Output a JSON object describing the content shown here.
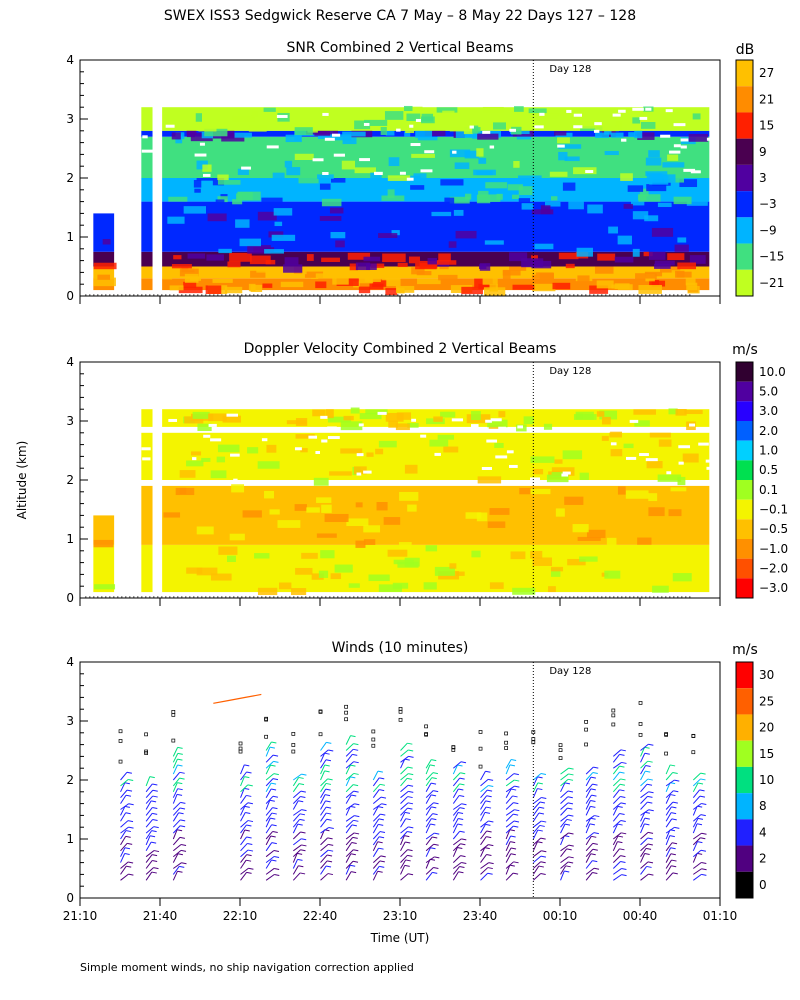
{
  "header": {
    "title": "SWEX ISS3 Sedgwick Reserve CA   7 May –  8 May 22 Days 127 – 128"
  },
  "footer": {
    "note": "Simple moment winds, no ship navigation correction applied"
  },
  "common": {
    "ylabel": "Altitude (km)",
    "xlabel": "Time (UT)",
    "y_ticks": [
      "0",
      "1",
      "2",
      "3",
      "4"
    ],
    "x_ticks": [
      "21:10",
      "21:40",
      "22:10",
      "22:40",
      "23:10",
      "23:40",
      "00:10",
      "00:40",
      "01:10"
    ],
    "day_marker": "Day 128"
  },
  "chart_data": [
    {
      "type": "heatmap",
      "title": "SNR Combined 2 Vertical Beams",
      "units": "dB",
      "xlabel": "Time (UT)",
      "ylabel": "Altitude (km)",
      "xlim_hours": [
        21.1667,
        25.1667
      ],
      "ylim": [
        0,
        4
      ],
      "day_marker_hour": 24.0,
      "data_gaps_hours": [
        [
          21.42,
          21.53
        ],
        [
          21.59,
          21.65
        ],
        [
          21.72,
          21.78
        ]
      ],
      "colorbar": {
        "labels": [
          "27",
          "21",
          "15",
          "9",
          "3",
          "−3",
          "−9",
          "−15",
          "−21"
        ],
        "colors": [
          "#ffc000",
          "#ff8c00",
          "#ff2000",
          "#4a0050",
          "#5000a0",
          "#0028ff",
          "#00b4ff",
          "#40e080",
          "#c0ff20"
        ]
      },
      "layers": [
        {
          "alt_km": [
            0.1,
            0.3
          ],
          "band": 1
        },
        {
          "alt_km": [
            0.3,
            0.5
          ],
          "band": 0
        },
        {
          "alt_km": [
            0.5,
            0.75
          ],
          "band": 3
        },
        {
          "alt_km": [
            0.75,
            1.6
          ],
          "band": 5
        },
        {
          "alt_km": [
            1.6,
            2.0
          ],
          "band": 6
        },
        {
          "alt_km": [
            2.0,
            2.7
          ],
          "band": 7
        },
        {
          "alt_km": [
            2.7,
            2.8
          ],
          "band": 5
        },
        {
          "alt_km": [
            2.8,
            3.2
          ],
          "band": 8
        }
      ]
    },
    {
      "type": "heatmap",
      "title": "Doppler Velocity Combined 2 Vertical Beams",
      "units": "m/s",
      "xlabel": "Time (UT)",
      "ylabel": "Altitude (km)",
      "xlim_hours": [
        21.1667,
        25.1667
      ],
      "ylim": [
        0,
        4
      ],
      "day_marker_hour": 24.0,
      "colorbar": {
        "labels": [
          "10.0",
          "5.0",
          "3.0",
          "2.0",
          "1.0",
          "0.5",
          "0.1",
          "−0.1",
          "−0.5",
          "−1.0",
          "−2.0",
          "−3.0"
        ],
        "colors": [
          "#300030",
          "#5000a0",
          "#2800ff",
          "#0060ff",
          "#00d0ff",
          "#00e050",
          "#a0ff20",
          "#f4f400",
          "#ffc000",
          "#ff9000",
          "#ff5000",
          "#ff0000"
        ]
      },
      "layers": [
        {
          "alt_km": [
            0.1,
            0.9
          ],
          "band": 7
        },
        {
          "alt_km": [
            0.9,
            1.9
          ],
          "band": 8
        },
        {
          "alt_km": [
            2.0,
            2.8
          ],
          "band": 7
        },
        {
          "alt_km": [
            2.9,
            3.2
          ],
          "band": 7
        }
      ]
    },
    {
      "type": "scatter",
      "subtype": "wind_barbs",
      "title": "Winds (10 minutes)",
      "units": "m/s",
      "xlabel": "Time (UT)",
      "ylabel": "Altitude (km)",
      "xlim_hours": [
        21.1667,
        25.1667
      ],
      "ylim": [
        0,
        4
      ],
      "day_marker_hour": 24.0,
      "profile_times_hours": [
        21.42,
        21.58,
        21.75,
        22.17,
        22.33,
        22.5,
        22.67,
        22.83,
        23.0,
        23.17,
        23.33,
        23.5,
        23.67,
        23.83,
        24.0,
        24.17,
        24.33,
        24.5,
        24.67,
        24.83,
        25.0
      ],
      "colorbar": {
        "labels": [
          "30",
          "25",
          "20",
          "15",
          "10",
          "8",
          "4",
          "2",
          "0"
        ],
        "colors": [
          "#ff0000",
          "#ff6000",
          "#ffb000",
          "#a0ff20",
          "#00e080",
          "#00b4ff",
          "#2020ff",
          "#500080",
          "#000000"
        ]
      }
    }
  ]
}
